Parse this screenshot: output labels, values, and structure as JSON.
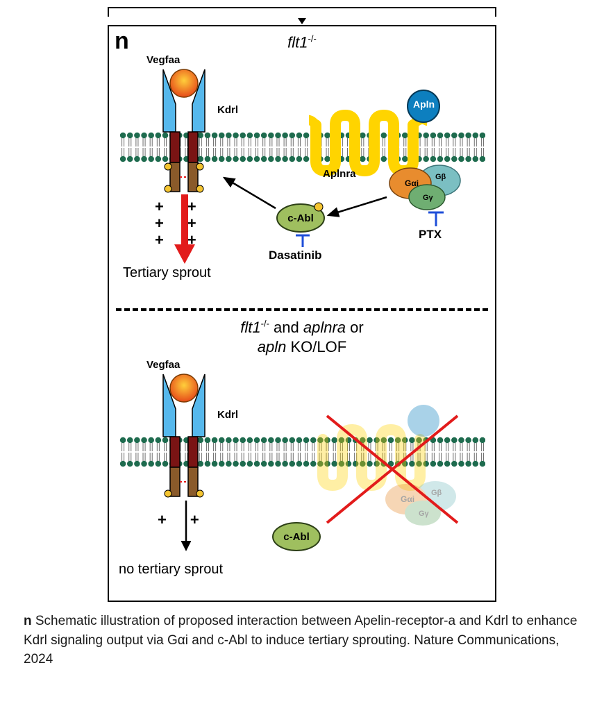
{
  "panel_label": "n",
  "top": {
    "title_html": "flt1",
    "title_sup": "-/-",
    "labels": {
      "vegfaa": "Vegfaa",
      "kdrl": "Kdrl",
      "apln": "Apln",
      "aplnra": "Aplnra",
      "gai": "Gαi",
      "gbeta": "Gβ",
      "ggamma": "Gγ",
      "cabl": "c-Abl",
      "ptx": "PTX",
      "dasatinib": "Dasatinib",
      "tertiary": "Tertiary sprout"
    }
  },
  "bottom": {
    "title_line1_a": "flt1",
    "title_line1_sup": "-/-",
    "title_line1_b": " and ",
    "title_line1_c": "aplnra",
    "title_line1_d": " or",
    "title_line2_a": "apln",
    "title_line2_b": " KO/LOF",
    "labels": {
      "vegfaa": "Vegfaa",
      "kdrl": "Kdrl",
      "cabl": "c-Abl",
      "none": "no tertiary sprout"
    }
  },
  "colors": {
    "membrane_head": "#1e6b4e",
    "membrane_tail": "#6e6e6e",
    "kdrl_blue": "#56b8ec",
    "kdrl_tm": "#7a1414",
    "kdrl_intra": "#8a5a2a",
    "vegf_grad_in": "#ffcf3b",
    "vegf_grad_out": "#e64a19",
    "gpcr_yellow": "#ffd400",
    "apln_blue": "#0d7fbf",
    "gai": "#e88c2e",
    "gbeta": "#7bbfc2",
    "ggamma": "#6fae72",
    "cabl_fill": "#9fbf5f",
    "cabl_stroke": "#2d4017",
    "red": "#e21b1b",
    "arrow": "#000000",
    "inhib_blue": "#1e4ed8",
    "phos": "#f4c430"
  },
  "caption": {
    "label": "n",
    "text": " Schematic illustration of proposed interaction between Apelin-receptor-a and Kdrl to enhance Kdrl signaling output via Gαi and c-Abl to induce tertiary sprouting. Nature Communications, 2024"
  }
}
